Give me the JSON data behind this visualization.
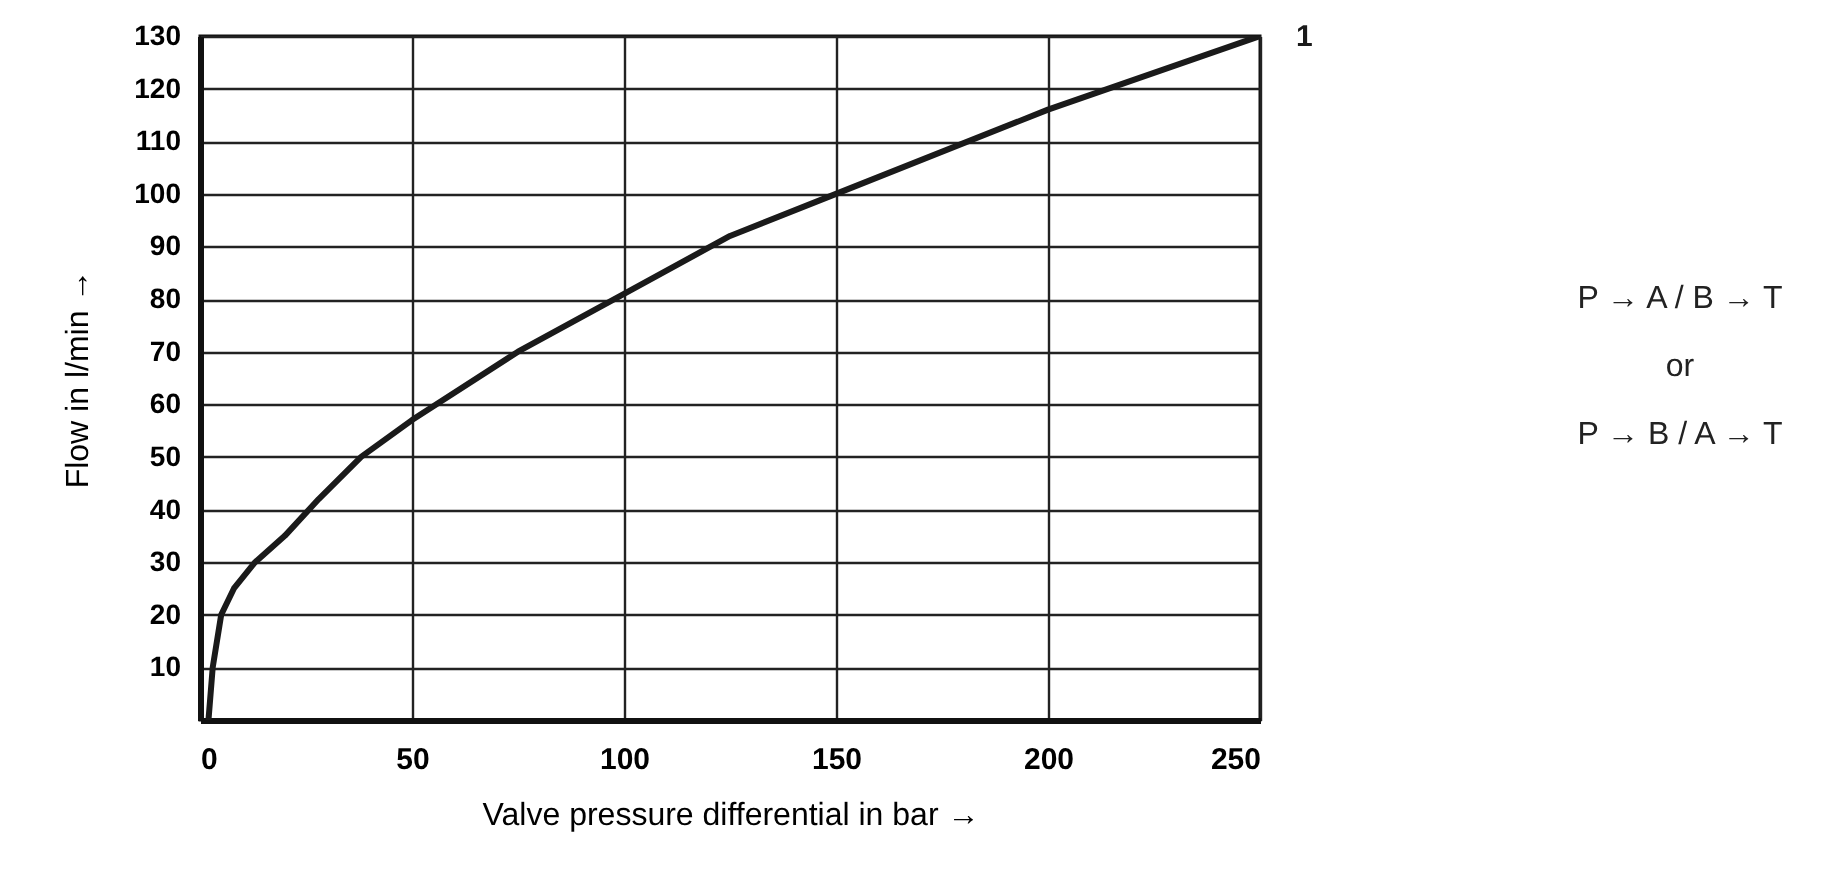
{
  "chart_data": {
    "type": "line",
    "xlabel": "Valve pressure differential in bar →",
    "ylabel": "Flow in l/min →",
    "x": [
      2,
      3,
      5,
      8,
      13,
      20,
      28,
      38,
      50,
      75,
      100,
      125,
      150,
      200,
      250
    ],
    "series": [
      {
        "name": "1",
        "color": "#1a1a1a",
        "values": [
          0,
          10,
          20,
          25,
          30,
          35,
          42,
          50,
          57,
          70,
          81,
          92,
          100,
          116,
          130
        ]
      }
    ],
    "xlim": [
      0,
      250
    ],
    "xticks": [
      0,
      50,
      100,
      150,
      200,
      250
    ],
    "ylim": [
      0,
      130
    ],
    "yticks": [
      10,
      20,
      30,
      40,
      50,
      60,
      70,
      80,
      90,
      100,
      110,
      120,
      130
    ],
    "grid": true,
    "marker": "none",
    "line_style": "solid",
    "annotations": [
      "P → A / B → T",
      "or",
      "P → B / A → T"
    ]
  }
}
